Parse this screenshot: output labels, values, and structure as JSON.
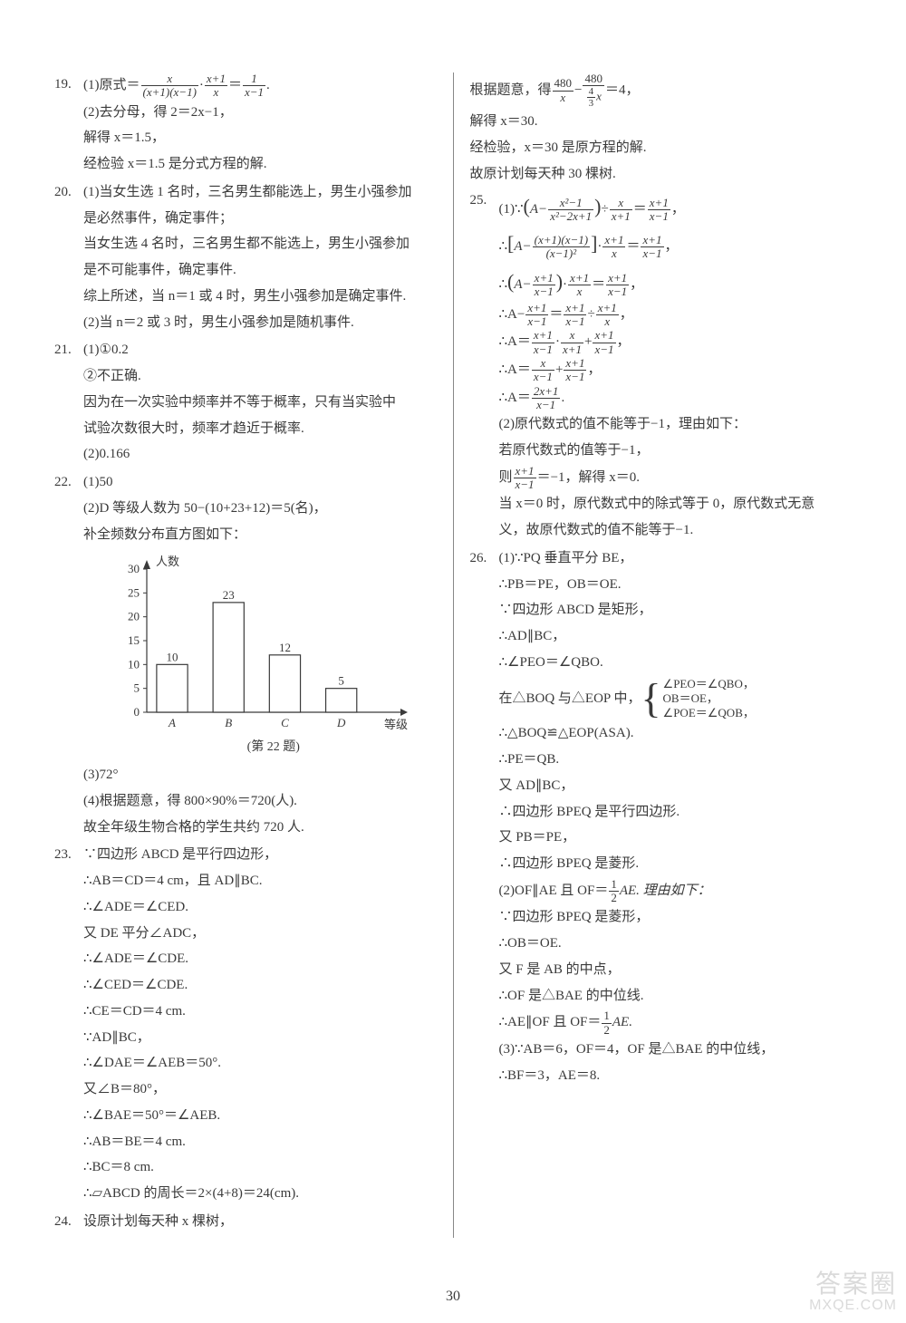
{
  "page_number": "30",
  "watermark": {
    "line1": "答案圈",
    "line2": "MXQE.COM"
  },
  "chart": {
    "type": "bar",
    "caption": "(第 22 题)",
    "x_label": "等级",
    "y_label": "人数",
    "categories": [
      "A",
      "B",
      "C",
      "D"
    ],
    "values": [
      10,
      23,
      12,
      5
    ],
    "value_labels": [
      "10",
      "23",
      "12",
      "5"
    ],
    "y_ticks": [
      0,
      5,
      10,
      15,
      20,
      25,
      30
    ],
    "y_max": 30,
    "bar_fill": "#ffffff",
    "bar_stroke": "#3a3a3a",
    "axis_color": "#3a3a3a",
    "font_size": 13,
    "bar_width": 0.55
  },
  "left": {
    "p19": {
      "num": "19.",
      "l1a": "(1)原式＝",
      "l1b": "·",
      "l1c": "＝",
      "l1d": ".",
      "f1n": "x",
      "f1d": "(x+1)(x−1)",
      "f2n": "x+1",
      "f2d": "x",
      "f3n": "1",
      "f3d": "x−1",
      "l2": "(2)去分母，得 2＝2x−1，",
      "l3": "解得 x＝1.5，",
      "l4": "经检验 x＝1.5 是分式方程的解."
    },
    "p20": {
      "num": "20.",
      "l1": "(1)当女生选 1 名时，三名男生都能选上，男生小强参加",
      "l2": "是必然事件，确定事件；",
      "l3": "当女生选 4 名时，三名男生都不能选上，男生小强参加",
      "l4": "是不可能事件，确定事件.",
      "l5": "综上所述，当 n＝1 或 4 时，男生小强参加是确定事件.",
      "l6": "(2)当 n＝2 或 3 时，男生小强参加是随机事件."
    },
    "p21": {
      "num": "21.",
      "l1": "(1)①0.2",
      "l2": "②不正确.",
      "l3": "因为在一次实验中频率并不等于概率，只有当实验中",
      "l4": "试验次数很大时，频率才趋近于概率.",
      "l5": "(2)0.166"
    },
    "p22": {
      "num": "22.",
      "l1": "(1)50",
      "l2": "(2)D 等级人数为 50−(10+23+12)＝5(名)，",
      "l3": "补全频数分布直方图如下：",
      "l4": "(3)72°",
      "l5": "(4)根据题意，得 800×90%＝720(人).",
      "l6": "故全年级生物合格的学生共约 720 人."
    },
    "p23": {
      "num": "23.",
      "l1": "∵四边形 ABCD 是平行四边形，",
      "l2": "∴AB＝CD＝4 cm，且 AD∥BC.",
      "l3": "∴∠ADE＝∠CED.",
      "l4": "又 DE 平分∠ADC，",
      "l5": "∴∠ADE＝∠CDE.",
      "l6": "∴∠CED＝∠CDE.",
      "l7": "∴CE＝CD＝4 cm.",
      "l8": "∵AD∥BC，",
      "l9": "∴∠DAE＝∠AEB＝50°.",
      "l10": "又∠B＝80°，",
      "l11": "∴∠BAE＝50°＝∠AEB.",
      "l12": "∴AB＝BE＝4 cm.",
      "l13": "∴BC＝8 cm.",
      "l14": "∴▱ABCD 的周长＝2×(4+8)＝24(cm)."
    },
    "p24": {
      "num": "24.",
      "l1": "设原计划每天种 x 棵树，"
    }
  },
  "right": {
    "p24c": {
      "l1a": "根据题意，得",
      "l1b": "−",
      "l1c": "＝4，",
      "f1n": "480",
      "f1d": "x",
      "f2n": "480",
      "f2dn": "4",
      "f2dd": "3",
      "f2dx": "x",
      "l2": "解得 x＝30.",
      "l3": "经检验，x＝30 是原方程的解.",
      "l4": "故原计划每天种 30 棵树."
    },
    "p25": {
      "num": "25.",
      "l1a": "(1)∵",
      "l1bL": "(",
      "l1bA": "A−",
      "l1bR": ")",
      "l1c": "÷",
      "l1d": "＝",
      "l1e": "，",
      "f1n": "x²−1",
      "f1d": "x²−2x+1",
      "f2n": "x",
      "f2d": "x+1",
      "f3n": "x+1",
      "f3d": "x−1",
      "l2a": "∴",
      "l2bL": "[",
      "l2bA": "A−",
      "l2bR": "]",
      "l2c": "·",
      "l2d": "＝",
      "l2e": "，",
      "f4n": "(x+1)(x−1)",
      "f4d": "(x−1)²",
      "f5n": "x+1",
      "f5d": "x",
      "l3a": "∴",
      "l3bL": "(",
      "l3bA": "A−",
      "l3bR": ")",
      "l3c": "·",
      "l3d": "＝",
      "l3e": "，",
      "f6n": "x+1",
      "f6d": "x−1",
      "l4a": "∴A−",
      "l4b": "＝",
      "l4c": "÷",
      "l4d": "，",
      "l5a": "∴A＝",
      "l5b": "·",
      "l5c": "+",
      "l5d": "，",
      "f7n": "x",
      "f7d": "x+1",
      "l6a": "∴A＝",
      "l6b": "+",
      "l6c": "，",
      "f8n": "x",
      "f8d": "x−1",
      "l7a": "∴A＝",
      "l7b": ".",
      "f9n": "2x+1",
      "f9d": "x−1",
      "l8": "(2)原代数式的值不能等于−1，理由如下：",
      "l9": "若原代数式的值等于−1，",
      "l10a": "则",
      "l10b": "＝−1，解得 x＝0.",
      "l11": "当 x＝0 时，原代数式中的除式等于 0，原代数式无意",
      "l12": "义，故原代数式的值不能等于−1."
    },
    "p26": {
      "num": "26.",
      "l1": "(1)∵PQ 垂直平分 BE，",
      "l2": "∴PB＝PE，OB＝OE.",
      "l3": "∵四边形 ABCD 是矩形，",
      "l4": "∴AD∥BC，",
      "l5": "∴∠PEO＝∠QBO.",
      "l6a": "在△BOQ 与△EOP 中，",
      "b1": "∠PEO＝∠QBO，",
      "b2": "OB＝OE，",
      "b3": "∠POE＝∠QOB，",
      "l7": "∴△BOQ≌△EOP(ASA).",
      "l8": "∴PE＝QB.",
      "l9": "又 AD∥BC，",
      "l10": "∴四边形 BPEQ 是平行四边形.",
      "l11": "又 PB＝PE，",
      "l12": "∴四边形 BPEQ 是菱形.",
      "l13a": "(2)OF∥AE 且 OF＝",
      "l13b": "AE. 理由如下：",
      "fh1n": "1",
      "fh1d": "2",
      "l14": "∵四边形 BPEQ 是菱形，",
      "l15": "∴OB＝OE.",
      "l16": "又 F 是 AB 的中点，",
      "l17": "∴OF 是△BAE 的中位线.",
      "l18a": "∴AE∥OF 且 OF＝",
      "l18b": "AE.",
      "l19": "(3)∵AB＝6，OF＝4，OF 是△BAE 的中位线，",
      "l20": "∴BF＝3，AE＝8."
    }
  }
}
